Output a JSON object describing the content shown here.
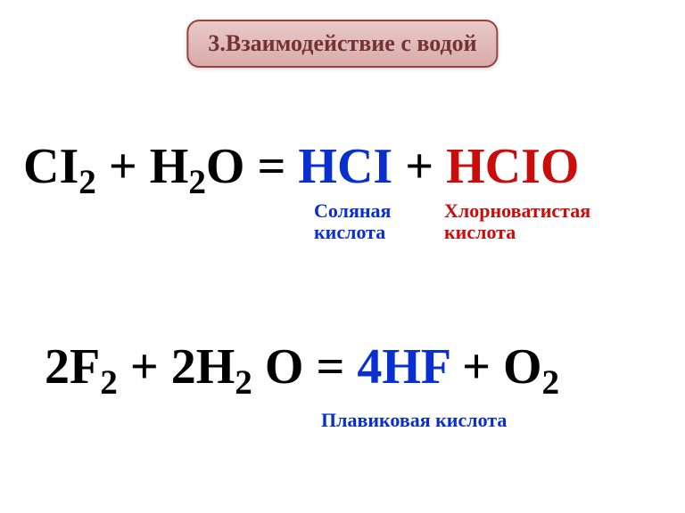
{
  "header": {
    "title": "3.Взаимодействие с водой"
  },
  "equation1": {
    "reagent1_main": "CI",
    "reagent1_sub": "2",
    "plus1": " + ",
    "reagent2_main": "H",
    "reagent2_sub": "2",
    "reagent2_tail": "O",
    "equals": " = ",
    "product1": "HCI",
    "plus2": " + ",
    "product2": "HCIO",
    "label_product1_line1": "Соляная",
    "label_product1_line2": "кислота",
    "label_product2_line1": "Хлорноватистая",
    "label_product2_line2": "кислота"
  },
  "equation2": {
    "reagent1_coef": "2F",
    "reagent1_sub": "2",
    "plus1": " + ",
    "reagent2_coef": "2H",
    "reagent2_sub": "2",
    "reagent2_space": " ",
    "reagent2_tail": "O",
    "equals": " = ",
    "product1": "4HF",
    "plus2": " + ",
    "product2_main": "O",
    "product2_sub": "2",
    "label_product1": "Плавиковая кислота"
  },
  "colors": {
    "header_text": "#743232",
    "header_bg_top": "#e8cac9",
    "header_bg_bot": "#d9abab",
    "header_border": "#9e3e3a",
    "black": "#000000",
    "blue": "#0a2fcf",
    "red": "#c90d0d",
    "page_bg": "#ffffff"
  },
  "typography": {
    "header_fontsize": 26,
    "equation_fontsize": 56,
    "label_fontsize": 22,
    "font_family": "Times New Roman"
  }
}
